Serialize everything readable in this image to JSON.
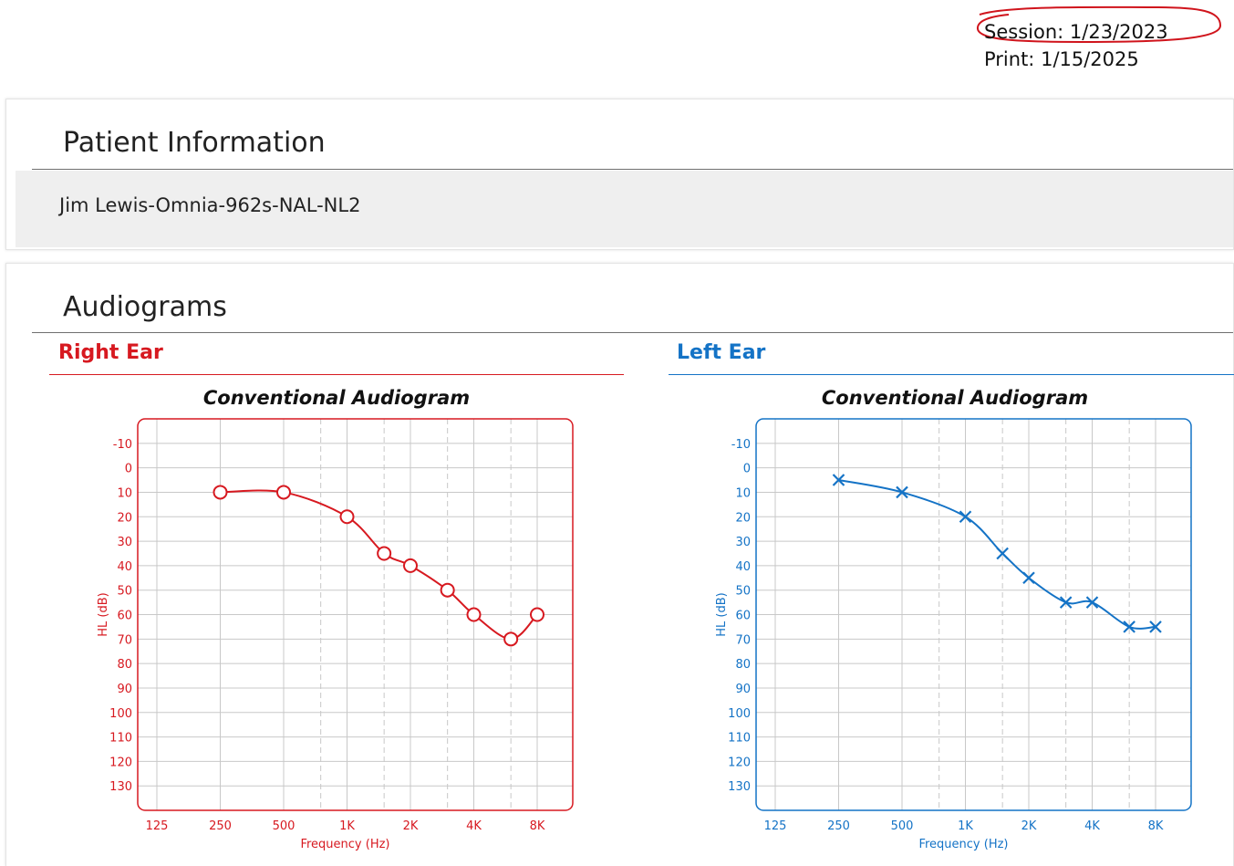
{
  "header": {
    "session_label": "Session:",
    "session_date": "1/23/2023",
    "print_label": "Print:",
    "print_date": "1/15/2025"
  },
  "patient_section": {
    "title": "Patient Information",
    "patient_name": "Jim Lewis-Omnia-962s-NAL-NL2"
  },
  "audiograms_section": {
    "title": "Audiograms"
  },
  "colors": {
    "right_ear": "#d71920",
    "left_ear": "#1473c6",
    "grid": "#c8c8c8"
  },
  "chart_data": [
    {
      "type": "line",
      "ear_label": "Right Ear",
      "title": "Conventional Audiogram",
      "xlabel": "Frequency (Hz)",
      "ylabel": "HL (dB)",
      "x_scale": "log2",
      "x_ticks": [
        125,
        250,
        500,
        1000,
        2000,
        4000,
        8000
      ],
      "x_tick_labels": [
        "125",
        "250",
        "500",
        "1K",
        "2K",
        "4K",
        "8K"
      ],
      "x_interoctave_gridlines": [
        750,
        1500,
        3000,
        6000
      ],
      "ylim": [
        -20,
        140
      ],
      "y_inverted": true,
      "y_ticks": [
        -10,
        0,
        10,
        20,
        30,
        40,
        50,
        60,
        70,
        80,
        90,
        100,
        110,
        120,
        130
      ],
      "grid": true,
      "marker": "circle",
      "series": [
        {
          "x": [
            250,
            500,
            1000,
            1500,
            2000,
            3000,
            4000,
            6000,
            8000
          ],
          "y": [
            10,
            10,
            20,
            35,
            40,
            50,
            60,
            70,
            60
          ]
        }
      ]
    },
    {
      "type": "line",
      "ear_label": "Left Ear",
      "title": "Conventional Audiogram",
      "xlabel": "Frequency (Hz)",
      "ylabel": "HL (dB)",
      "x_scale": "log2",
      "x_ticks": [
        125,
        250,
        500,
        1000,
        2000,
        4000,
        8000
      ],
      "x_tick_labels": [
        "125",
        "250",
        "500",
        "1K",
        "2K",
        "4K",
        "8K"
      ],
      "x_interoctave_gridlines": [
        750,
        1500,
        3000,
        6000
      ],
      "ylim": [
        -20,
        140
      ],
      "y_inverted": true,
      "y_ticks": [
        -10,
        0,
        10,
        20,
        30,
        40,
        50,
        60,
        70,
        80,
        90,
        100,
        110,
        120,
        130
      ],
      "grid": true,
      "marker": "x",
      "series": [
        {
          "x": [
            250,
            500,
            1000,
            1500,
            2000,
            3000,
            4000,
            6000,
            8000
          ],
          "y": [
            5,
            10,
            20,
            35,
            45,
            55,
            55,
            65,
            65
          ]
        }
      ]
    }
  ]
}
